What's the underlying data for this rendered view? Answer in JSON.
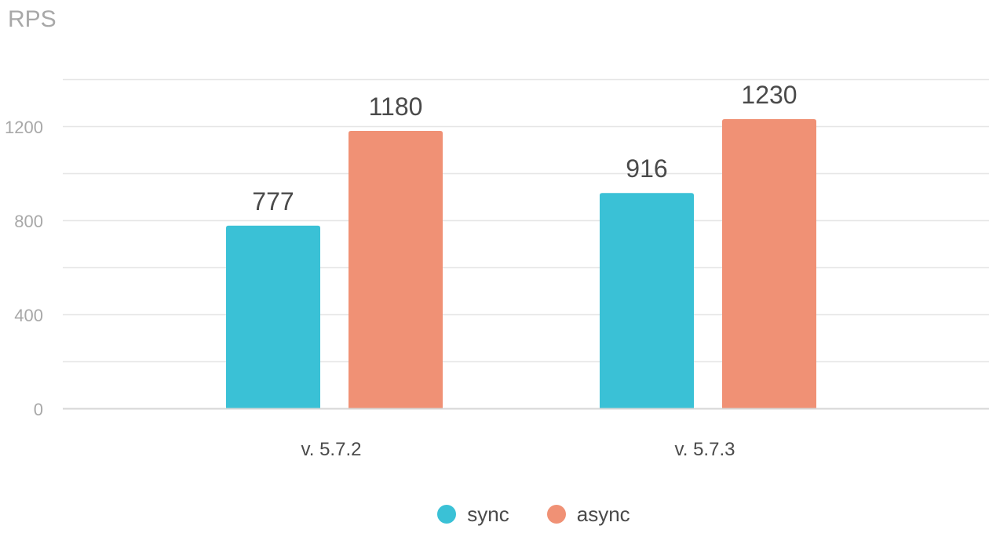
{
  "chart_data": {
    "type": "bar",
    "title": "",
    "xlabel": "",
    "ylabel": "RPS",
    "categories": [
      "v. 5.7.2",
      "v. 5.7.3"
    ],
    "series": [
      {
        "name": "sync",
        "values": [
          777,
          916
        ],
        "color": "#3ac1d6"
      },
      {
        "name": "async",
        "values": [
          1180,
          1230
        ],
        "color": "#f09175"
      }
    ],
    "ylim": [
      0,
      1400
    ],
    "yticks": [
      0,
      400,
      800,
      1200
    ],
    "ytick_labels": [
      "0",
      "400",
      "800",
      "1200"
    ],
    "grid": true,
    "legend_position": "bottom-center"
  }
}
